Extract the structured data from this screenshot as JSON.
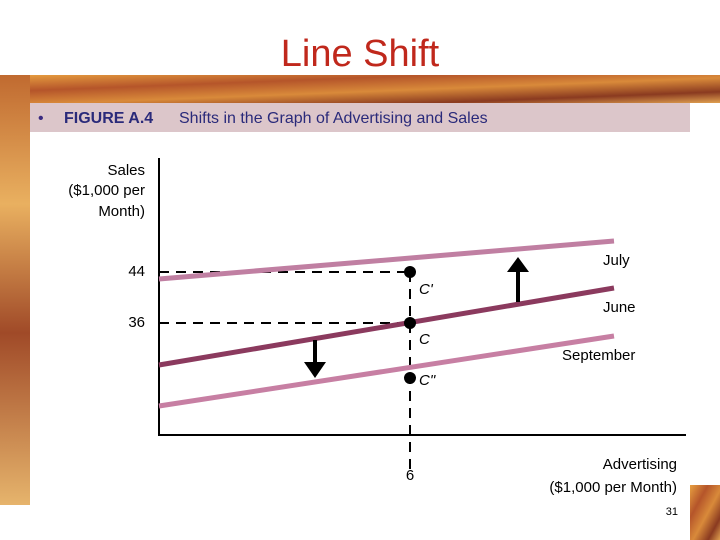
{
  "title": "Line Shift",
  "header": {
    "bullet": "•",
    "label": "FIGURE A.4",
    "text": "Shifts in the Graph of Advertising and Sales"
  },
  "figure": {
    "y_axis_label": [
      "Sales",
      "($1,000 per",
      "Month)"
    ],
    "y_ticks": [
      44,
      36
    ],
    "x_tick": 6,
    "x_axis_label": [
      "Advertising",
      "($1,000 per Month)"
    ],
    "lines": [
      "July",
      "June",
      "September"
    ],
    "points": [
      "C'",
      "C",
      "C\""
    ]
  },
  "page_number": 31
}
